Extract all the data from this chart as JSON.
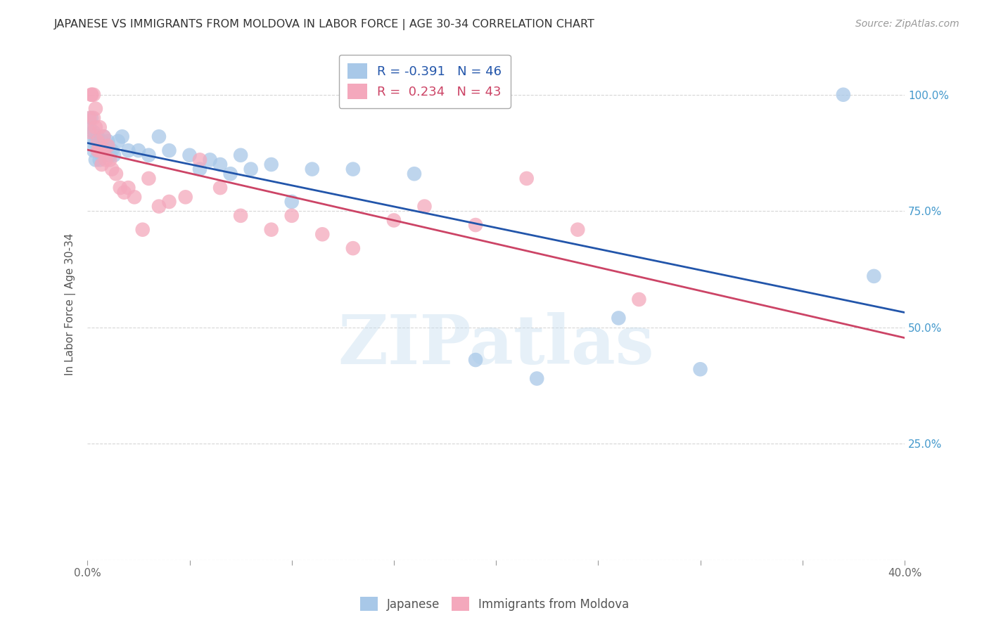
{
  "title": "JAPANESE VS IMMIGRANTS FROM MOLDOVA IN LABOR FORCE | AGE 30-34 CORRELATION CHART",
  "source": "Source: ZipAtlas.com",
  "ylabel": "In Labor Force | Age 30-34",
  "blue_R": -0.391,
  "blue_N": 46,
  "pink_R": 0.234,
  "pink_N": 43,
  "watermark": "ZIPatlas",
  "blue_color": "#A8C8E8",
  "pink_color": "#F4A8BC",
  "blue_line_color": "#2255AA",
  "pink_line_color": "#CC4466",
  "background_color": "#FFFFFF",
  "grid_color": "#CCCCCC",
  "title_color": "#333333",
  "axis_label_color": "#555555",
  "right_tick_color": "#4499CC",
  "xlim": [
    0.0,
    0.4
  ],
  "ylim": [
    0.0,
    1.1
  ],
  "japanese_x": [
    0.001,
    0.002,
    0.002,
    0.003,
    0.003,
    0.004,
    0.004,
    0.005,
    0.005,
    0.006,
    0.006,
    0.007,
    0.007,
    0.008,
    0.008,
    0.009,
    0.01,
    0.01,
    0.011,
    0.012,
    0.013,
    0.015,
    0.017,
    0.02,
    0.025,
    0.03,
    0.035,
    0.04,
    0.05,
    0.055,
    0.06,
    0.065,
    0.07,
    0.075,
    0.08,
    0.09,
    0.1,
    0.11,
    0.13,
    0.16,
    0.19,
    0.22,
    0.26,
    0.3,
    0.37,
    0.385
  ],
  "japanese_y": [
    0.93,
    0.95,
    0.9,
    0.92,
    0.88,
    0.9,
    0.86,
    0.91,
    0.88,
    0.89,
    0.86,
    0.9,
    0.87,
    0.91,
    0.88,
    0.89,
    0.88,
    0.9,
    0.87,
    0.88,
    0.87,
    0.9,
    0.91,
    0.88,
    0.88,
    0.87,
    0.91,
    0.88,
    0.87,
    0.84,
    0.86,
    0.85,
    0.83,
    0.87,
    0.84,
    0.85,
    0.77,
    0.84,
    0.84,
    0.83,
    0.43,
    0.39,
    0.52,
    0.41,
    1.0,
    0.61
  ],
  "moldova_x": [
    0.001,
    0.001,
    0.002,
    0.002,
    0.003,
    0.003,
    0.004,
    0.004,
    0.005,
    0.005,
    0.006,
    0.006,
    0.007,
    0.007,
    0.008,
    0.008,
    0.009,
    0.01,
    0.011,
    0.012,
    0.014,
    0.016,
    0.018,
    0.02,
    0.023,
    0.027,
    0.03,
    0.035,
    0.04,
    0.048,
    0.055,
    0.065,
    0.075,
    0.09,
    0.1,
    0.115,
    0.13,
    0.15,
    0.165,
    0.19,
    0.215,
    0.24,
    0.27
  ],
  "moldova_y": [
    0.92,
    0.95,
    1.0,
    1.0,
    0.95,
    1.0,
    0.93,
    0.97,
    0.9,
    0.88,
    0.88,
    0.93,
    0.88,
    0.85,
    0.91,
    0.88,
    0.86,
    0.89,
    0.86,
    0.84,
    0.83,
    0.8,
    0.79,
    0.8,
    0.78,
    0.71,
    0.82,
    0.76,
    0.77,
    0.78,
    0.86,
    0.8,
    0.74,
    0.71,
    0.74,
    0.7,
    0.67,
    0.73,
    0.76,
    0.72,
    0.82,
    0.71,
    0.56
  ]
}
